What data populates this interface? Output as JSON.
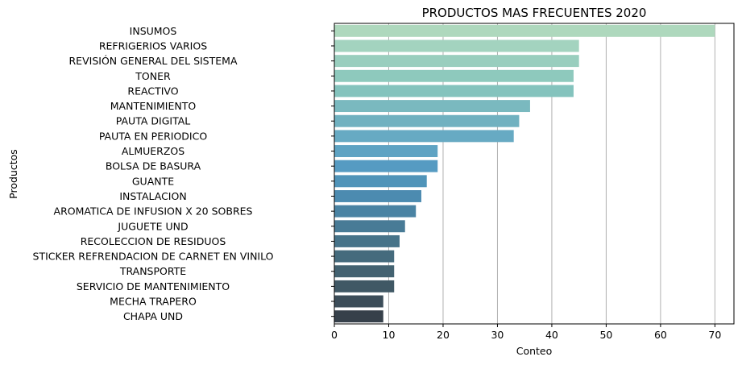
{
  "chart_data": {
    "type": "bar",
    "orientation": "horizontal",
    "title": "PRODUCTOS MAS FRECUENTES 2020",
    "xlabel": "Conteo",
    "ylabel": "Productos",
    "xlim": [
      0,
      73.5
    ],
    "xticks": [
      0,
      10,
      20,
      30,
      40,
      50,
      60,
      70
    ],
    "grid": "vertical",
    "categories": [
      "INSUMOS",
      "REFRIGERIOS VARIOS",
      "REVISIÓN GENERAL DEL SISTEMA",
      "TONER",
      "REACTIVO",
      "MANTENIMIENTO",
      "PAUTA DIGITAL",
      "PAUTA EN PERIODICO",
      "ALMUERZOS",
      "BOLSA DE BASURA",
      "GUANTE",
      "INSTALACION",
      "AROMATICA DE INFUSION X 20 SOBRES",
      "JUGUETE UND",
      "RECOLECCION DE RESIDUOS",
      "STICKER REFRENDACION DE CARNET EN VINILO",
      "TRANSPORTE",
      "SERVICIO DE MANTENIMIENTO",
      "MECHA TRAPERO",
      "CHAPA UND"
    ],
    "values": [
      70,
      45,
      45,
      44,
      44,
      36,
      34,
      33,
      19,
      19,
      17,
      16,
      15,
      13,
      12,
      11,
      11,
      11,
      9,
      9
    ],
    "colors": [
      "#aed8bd",
      "#a3d3bf",
      "#99cebe",
      "#8ec9bd",
      "#84c3bd",
      "#7ab9bf",
      "#70b1c0",
      "#67aac3",
      "#5ea3c3",
      "#569bc2",
      "#5094b9",
      "#4c8bb0",
      "#4a83a3",
      "#487b96",
      "#467389",
      "#456b7d",
      "#436271",
      "#405865",
      "#3c4d59",
      "#36404a"
    ]
  }
}
